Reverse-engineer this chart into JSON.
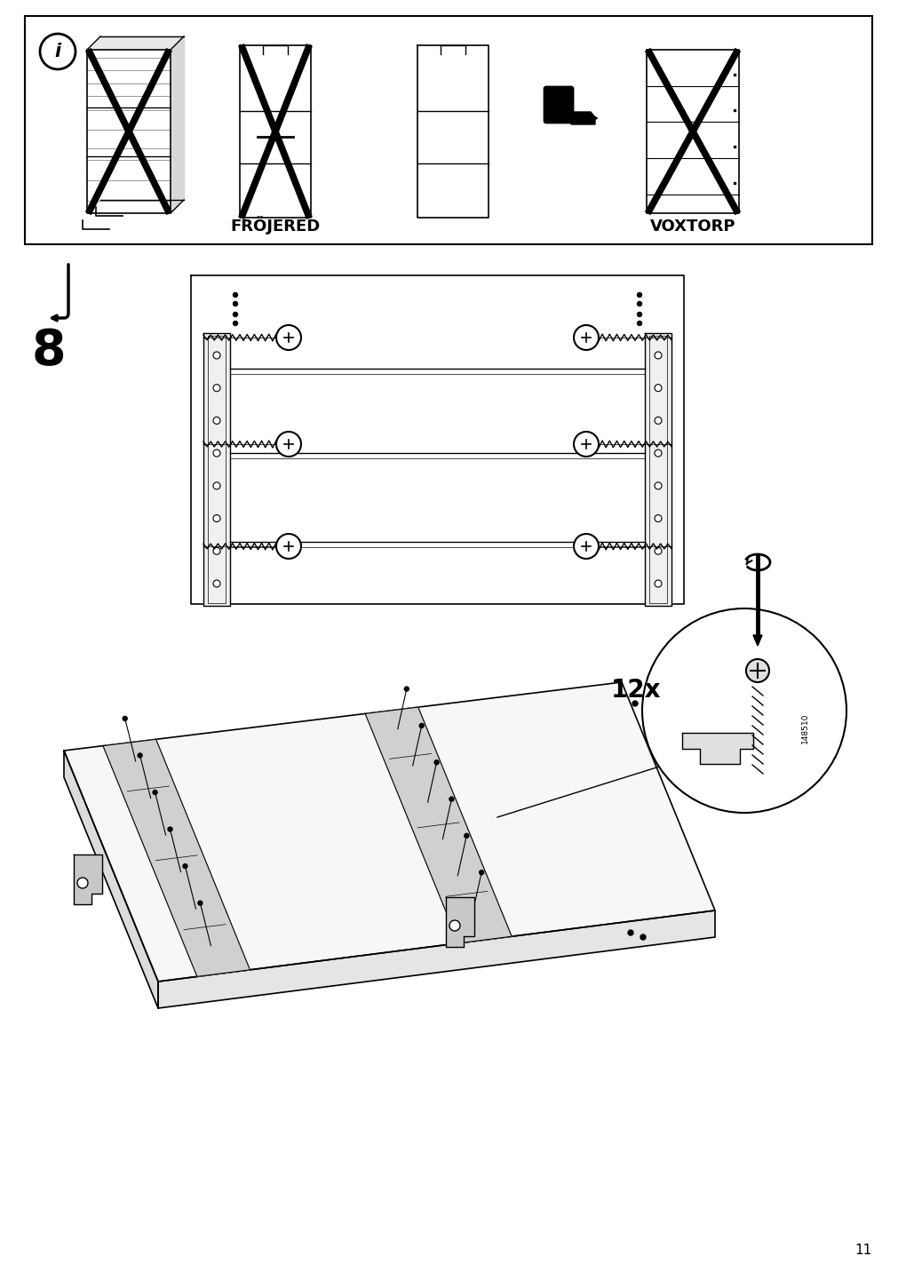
{
  "page_number": "11",
  "background_color": "#ffffff",
  "step_number": "8",
  "label_frojered": "FRÖJERED",
  "label_voxtorp": "VOXTORP",
  "screw_count_label": "12x",
  "part_number": "148510",
  "fig_width": 10.12,
  "fig_height": 14.32,
  "dpi": 100
}
